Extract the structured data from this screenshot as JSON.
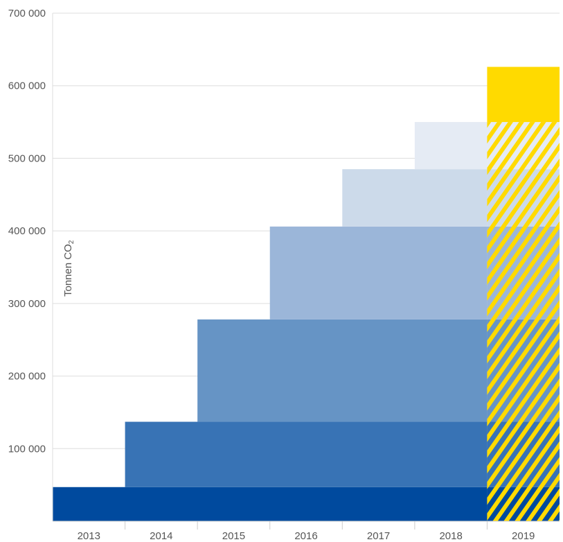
{
  "chart_data": {
    "type": "bar",
    "subtype": "cumulative-stacked-steps",
    "ylabel": "Tonnen CO",
    "ylabel_subscript": "2",
    "ylim": [
      0,
      700000
    ],
    "yticks": [
      {
        "value": 700000,
        "label": "700 000"
      },
      {
        "value": 600000,
        "label": "600 000"
      },
      {
        "value": 500000,
        "label": "500 000"
      },
      {
        "value": 400000,
        "label": "400 000"
      },
      {
        "value": 300000,
        "label": "300 000"
      },
      {
        "value": 200000,
        "label": "200 000"
      },
      {
        "value": 100000,
        "label": "100 000"
      }
    ],
    "categories": [
      "2013",
      "2014",
      "2015",
      "2016",
      "2017",
      "2018",
      "2019"
    ],
    "series": [
      {
        "start": "2013",
        "bottom": 0,
        "top": 47000,
        "color": "#004a9e"
      },
      {
        "start": "2014",
        "bottom": 47000,
        "top": 137000,
        "color": "#3873b5"
      },
      {
        "start": "2015",
        "bottom": 137000,
        "top": 278000,
        "color": "#6694c5"
      },
      {
        "start": "2016",
        "bottom": 278000,
        "top": 406000,
        "color": "#9bb6d9"
      },
      {
        "start": "2017",
        "bottom": 406000,
        "top": 485000,
        "color": "#ccdaea"
      },
      {
        "start": "2018",
        "bottom": 485000,
        "top": 550000,
        "color": "#e5ebf4"
      },
      {
        "start": "2019",
        "bottom": 550000,
        "top": 626000,
        "color": "#ffda00"
      }
    ],
    "highlight_category": "2019",
    "highlight_color": "#ffda00",
    "grid": true,
    "legend": false
  }
}
